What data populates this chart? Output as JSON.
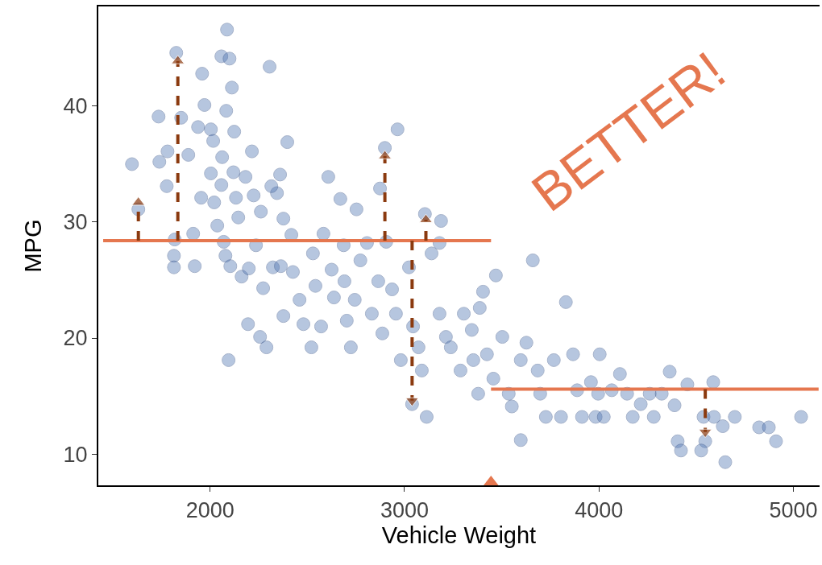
{
  "chart_data": {
    "type": "scatter",
    "xlabel": "Vehicle Weight",
    "ylabel": "MPG",
    "annotations": [
      "BETTER!"
    ],
    "xlim": [
      1425,
      5135
    ],
    "ylim": [
      7.3,
      48.6
    ],
    "xticks": [
      2000,
      3000,
      4000,
      5000
    ],
    "yticks": [
      10,
      20,
      30,
      40
    ],
    "grid": false,
    "marker": "circle",
    "series": [
      {
        "color": "#4c72b0",
        "x": [
          1598,
          1631,
          1735,
          1739,
          1781,
          1777,
          1818,
          1814,
          1814,
          1826,
          1851,
          1888,
          1913,
          1921,
          1938,
          1959,
          1954,
          1971,
          2004,
          2004,
          2016,
          2021,
          2037,
          2058,
          2062,
          2070,
          2083,
          2079,
          2087,
          2058,
          2100,
          2112,
          2124,
          2120,
          2133,
          2104,
          2095,
          2145,
          2162,
          2182,
          2199,
          2215,
          2224,
          2236,
          2261,
          2273,
          2195,
          2257,
          2290,
          2323,
          2344,
          2315,
          2377,
          2306,
          2397,
          2360,
          2364,
          2377,
          2418,
          2426,
          2460,
          2480,
          2529,
          2542,
          2521,
          2583,
          2571,
          2608,
          2625,
          2637,
          2670,
          2687,
          2691,
          2703,
          2724,
          2744,
          2753,
          2773,
          2807,
          2832,
          2865,
          2886,
          2906,
          2936,
          2956,
          2981,
          3023,
          2964,
          2874,
          2899,
          3044,
          3039,
          3072,
          3089,
          3105,
          3114,
          3139,
          3180,
          3188,
          3180,
          3213,
          3238,
          3288,
          3305,
          3346,
          3379,
          3354,
          3387,
          3404,
          3424,
          3457,
          3470,
          3503,
          3536,
          3552,
          3598,
          3598,
          3627,
          3660,
          3685,
          3698,
          3727,
          3768,
          3805,
          3830,
          3867,
          3888,
          3913,
          3959,
          4004,
          3996,
          3983,
          4025,
          4066,
          4108,
          4145,
          4174,
          4215,
          4261,
          4282,
          4323,
          4364,
          4389,
          4405,
          4422,
          4455,
          4538,
          4547,
          4526,
          4592,
          4637,
          4650,
          4699,
          4824,
          4874,
          4911,
          5040,
          4588
        ],
        "values": [
          35.0,
          31.1,
          39.1,
          35.2,
          36.1,
          33.1,
          28.5,
          27.1,
          26.1,
          44.6,
          39.0,
          35.8,
          29.0,
          26.2,
          38.2,
          42.8,
          32.1,
          40.1,
          38.0,
          34.2,
          37.0,
          31.7,
          29.7,
          33.2,
          35.6,
          28.3,
          39.6,
          27.1,
          46.6,
          44.3,
          44.1,
          41.6,
          37.8,
          34.3,
          32.1,
          26.2,
          18.1,
          30.4,
          25.3,
          33.9,
          26.0,
          36.1,
          32.3,
          28.0,
          30.9,
          24.3,
          21.2,
          20.1,
          19.2,
          26.1,
          32.5,
          33.1,
          30.3,
          43.4,
          36.9,
          34.1,
          26.2,
          21.9,
          28.9,
          25.7,
          23.3,
          21.2,
          27.3,
          24.5,
          19.2,
          29.0,
          21.0,
          33.9,
          25.9,
          23.5,
          32.0,
          28.0,
          24.9,
          21.5,
          19.2,
          23.3,
          31.1,
          26.7,
          28.2,
          22.1,
          24.9,
          20.4,
          28.3,
          24.2,
          22.1,
          18.1,
          26.1,
          38.0,
          32.9,
          36.4,
          21.0,
          14.3,
          19.2,
          17.2,
          30.7,
          13.2,
          27.3,
          28.2,
          30.1,
          22.1,
          20.1,
          19.2,
          17.2,
          22.1,
          20.7,
          15.2,
          18.1,
          22.6,
          24.0,
          18.6,
          16.5,
          25.4,
          20.1,
          15.2,
          14.1,
          18.1,
          11.2,
          19.6,
          26.7,
          17.2,
          15.2,
          13.2,
          18.1,
          13.2,
          23.1,
          18.6,
          15.5,
          13.2,
          16.2,
          18.6,
          15.2,
          13.2,
          13.2,
          15.5,
          16.9,
          15.2,
          13.2,
          14.3,
          15.2,
          13.2,
          15.2,
          17.1,
          14.2,
          11.1,
          10.3,
          16.0,
          13.2,
          11.1,
          10.3,
          13.2,
          12.4,
          9.3,
          13.2,
          12.3,
          12.3,
          11.1,
          13.2,
          16.2
        ]
      },
      {
        "type": "line",
        "color": "#e5774f",
        "marker": "none",
        "x": [
          1450,
          3445
        ],
        "values": [
          28.4,
          28.4
        ]
      },
      {
        "type": "line",
        "color": "#e5774f",
        "marker": "none",
        "x": [
          3445,
          5130
        ],
        "values": [
          15.6,
          15.6
        ]
      },
      {
        "type": "line",
        "color": "#8b3a0f",
        "marker": "triangle",
        "line_style": "dashed",
        "x": [
          1631,
          1631,
          null,
          1834,
          1834,
          null,
          2899,
          2899,
          null,
          3110,
          3110,
          null,
          3039,
          3039,
          null,
          4547,
          4547
        ],
        "values": [
          28.4,
          31.7,
          null,
          28.4,
          43.9,
          null,
          28.4,
          35.7,
          null,
          28.4,
          30.2,
          null,
          28.4,
          14.6,
          null,
          15.6,
          11.9
        ]
      },
      {
        "type": "scatter",
        "color": "#e5774f",
        "marker": "triangle",
        "x": [
          3445
        ],
        "values": [
          7.3
        ]
      }
    ]
  }
}
